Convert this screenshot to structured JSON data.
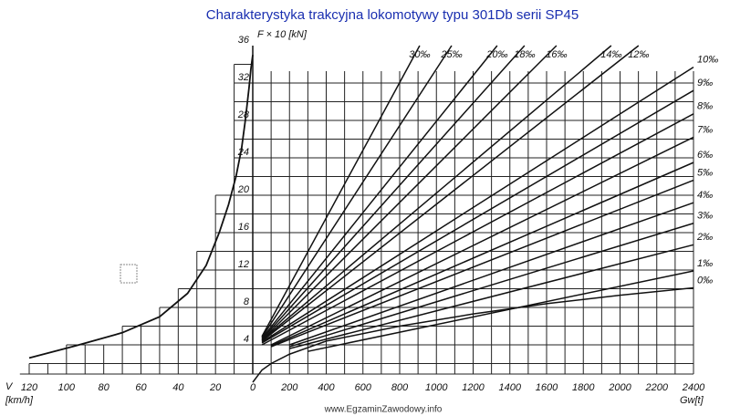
{
  "chart_data": {
    "type": "line",
    "title": "Charakterystyka   trakcyjna  lokomotywy   typu  301Db serii  SP45",
    "y_label": "F × 10 [kN]",
    "v_label": "V",
    "v_unit": "[km/h]",
    "x_label": "Gw[t]",
    "watermark": "www.EgzaminZawodowy.info",
    "xlim": [
      0,
      2400
    ],
    "xticks": [
      200,
      400,
      600,
      800,
      1000,
      1200,
      1400,
      1600,
      1800,
      2000,
      2200,
      2400
    ],
    "vlim": [
      0,
      120
    ],
    "vticks": [
      0,
      20,
      40,
      60,
      80,
      100,
      120
    ],
    "ylim": [
      0,
      36
    ],
    "yticks": [
      4,
      8,
      12,
      16,
      20,
      24,
      28,
      32,
      36
    ],
    "grid": true,
    "color": "#111111",
    "traction": {
      "v": [
        0,
        1,
        2,
        4,
        6,
        9,
        13,
        18,
        25,
        35,
        50,
        70,
        95,
        120
      ],
      "f": [
        35,
        33.5,
        31.5,
        28,
        25,
        22,
        19,
        16,
        12.5,
        9.5,
        7,
        5.3,
        3.9,
        2.6
      ]
    },
    "series": [
      {
        "name": "0‰",
        "x": [
          0,
          50,
          100,
          200,
          400,
          800,
          1200,
          1600,
          2000,
          2400
        ],
        "values": [
          0,
          1.3,
          2,
          3,
          4.4,
          6,
          7.3,
          8.4,
          9.3,
          10.1
        ]
      },
      {
        "name": "1‰",
        "x": [
          300,
          2400
        ],
        "values": [
          3.3,
          11.9
        ]
      },
      {
        "name": "2‰",
        "x": [
          200,
          2400
        ],
        "values": [
          3.6,
          14.7
        ]
      },
      {
        "name": "3‰",
        "x": [
          200,
          2400
        ],
        "values": [
          3.8,
          17
        ]
      },
      {
        "name": "4‰",
        "x": [
          200,
          2400
        ],
        "values": [
          4,
          19.2
        ]
      },
      {
        "name": "5‰",
        "x": [
          100,
          2400
        ],
        "values": [
          3.8,
          21.6
        ]
      },
      {
        "name": "6‰",
        "x": [
          100,
          2400
        ],
        "values": [
          3.9,
          23.5
        ]
      },
      {
        "name": "7‰",
        "x": [
          100,
          2400
        ],
        "values": [
          4,
          26.2
        ]
      },
      {
        "name": "8‰",
        "x": [
          50,
          2400
        ],
        "values": [
          4,
          28.7
        ]
      },
      {
        "name": "9‰",
        "x": [
          50,
          2400
        ],
        "values": [
          4.2,
          31.2
        ]
      },
      {
        "name": "10‰",
        "x": [
          50,
          2400
        ],
        "values": [
          4.3,
          33.7
        ]
      },
      {
        "name": "12‰",
        "x": [
          50,
          2101
        ],
        "values": [
          4.4,
          36
        ]
      },
      {
        "name": "14‰",
        "x": [
          50,
          1952
        ],
        "values": [
          4.5,
          36
        ]
      },
      {
        "name": "16‰",
        "x": [
          50,
          1654
        ],
        "values": [
          4.5,
          36
        ]
      },
      {
        "name": "18‰",
        "x": [
          50,
          1480
        ],
        "values": [
          4.6,
          36
        ]
      },
      {
        "name": "20‰",
        "x": [
          50,
          1331
        ],
        "values": [
          4.7,
          36
        ]
      },
      {
        "name": "25‰",
        "x": [
          50,
          1083
        ],
        "values": [
          4.8,
          36
        ]
      },
      {
        "name": "30‰",
        "x": [
          50,
          909
        ],
        "values": [
          4.9,
          36
        ]
      }
    ]
  }
}
